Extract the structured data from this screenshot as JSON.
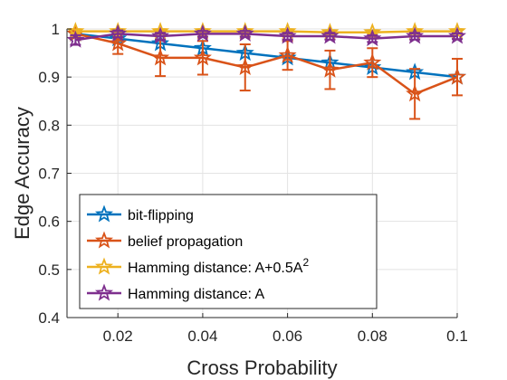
{
  "chart_data": {
    "type": "line",
    "xlabel": "Cross Probability",
    "ylabel": "Edge Accuracy",
    "xlim": [
      0.008,
      0.1
    ],
    "ylim": [
      0.4,
      1.0
    ],
    "x_ticks": [
      "0.02",
      "0.04",
      "0.06",
      "0.08",
      "0.1"
    ],
    "y_ticks": [
      "0.4",
      "0.5",
      "0.6",
      "0.7",
      "0.8",
      "0.9",
      "1"
    ],
    "grid": true,
    "legend_position": "bottom-left",
    "x": [
      0.01,
      0.02,
      0.03,
      0.04,
      0.05,
      0.06,
      0.07,
      0.08,
      0.09,
      0.1
    ],
    "series": [
      {
        "name": "bit-flipping",
        "color": "#0072BD",
        "values": [
          0.99,
          0.98,
          0.97,
          0.96,
          0.95,
          0.94,
          0.93,
          0.92,
          0.91,
          0.9
        ],
        "errors": [
          0,
          0,
          0,
          0,
          0,
          0,
          0,
          0,
          0,
          0
        ]
      },
      {
        "name": "belief propagation",
        "color": "#D95319",
        "values": [
          0.99,
          0.97,
          0.94,
          0.94,
          0.92,
          0.945,
          0.915,
          0.93,
          0.865,
          0.9
        ],
        "errors": [
          0.005,
          0.022,
          0.038,
          0.035,
          0.048,
          0.03,
          0.04,
          0.03,
          0.052,
          0.038
        ]
      },
      {
        "name": "Hamming distance: A+0.5A",
        "name_sup": "2",
        "color": "#EDB120",
        "values": [
          0.995,
          0.995,
          0.995,
          0.995,
          0.995,
          0.995,
          0.993,
          0.993,
          0.995,
          0.995
        ],
        "errors": [
          0.004,
          0.004,
          0.004,
          0.003,
          0.003,
          0.003,
          0.004,
          0.004,
          0.003,
          0.003
        ]
      },
      {
        "name": "Hamming distance: A",
        "color": "#7E2F8E",
        "values": [
          0.977,
          0.99,
          0.985,
          0.99,
          0.99,
          0.985,
          0.985,
          0.98,
          0.985,
          0.985
        ],
        "errors": [
          0.01,
          0.007,
          0.007,
          0.006,
          0.006,
          0.007,
          0.007,
          0.007,
          0.007,
          0.006
        ]
      }
    ]
  }
}
